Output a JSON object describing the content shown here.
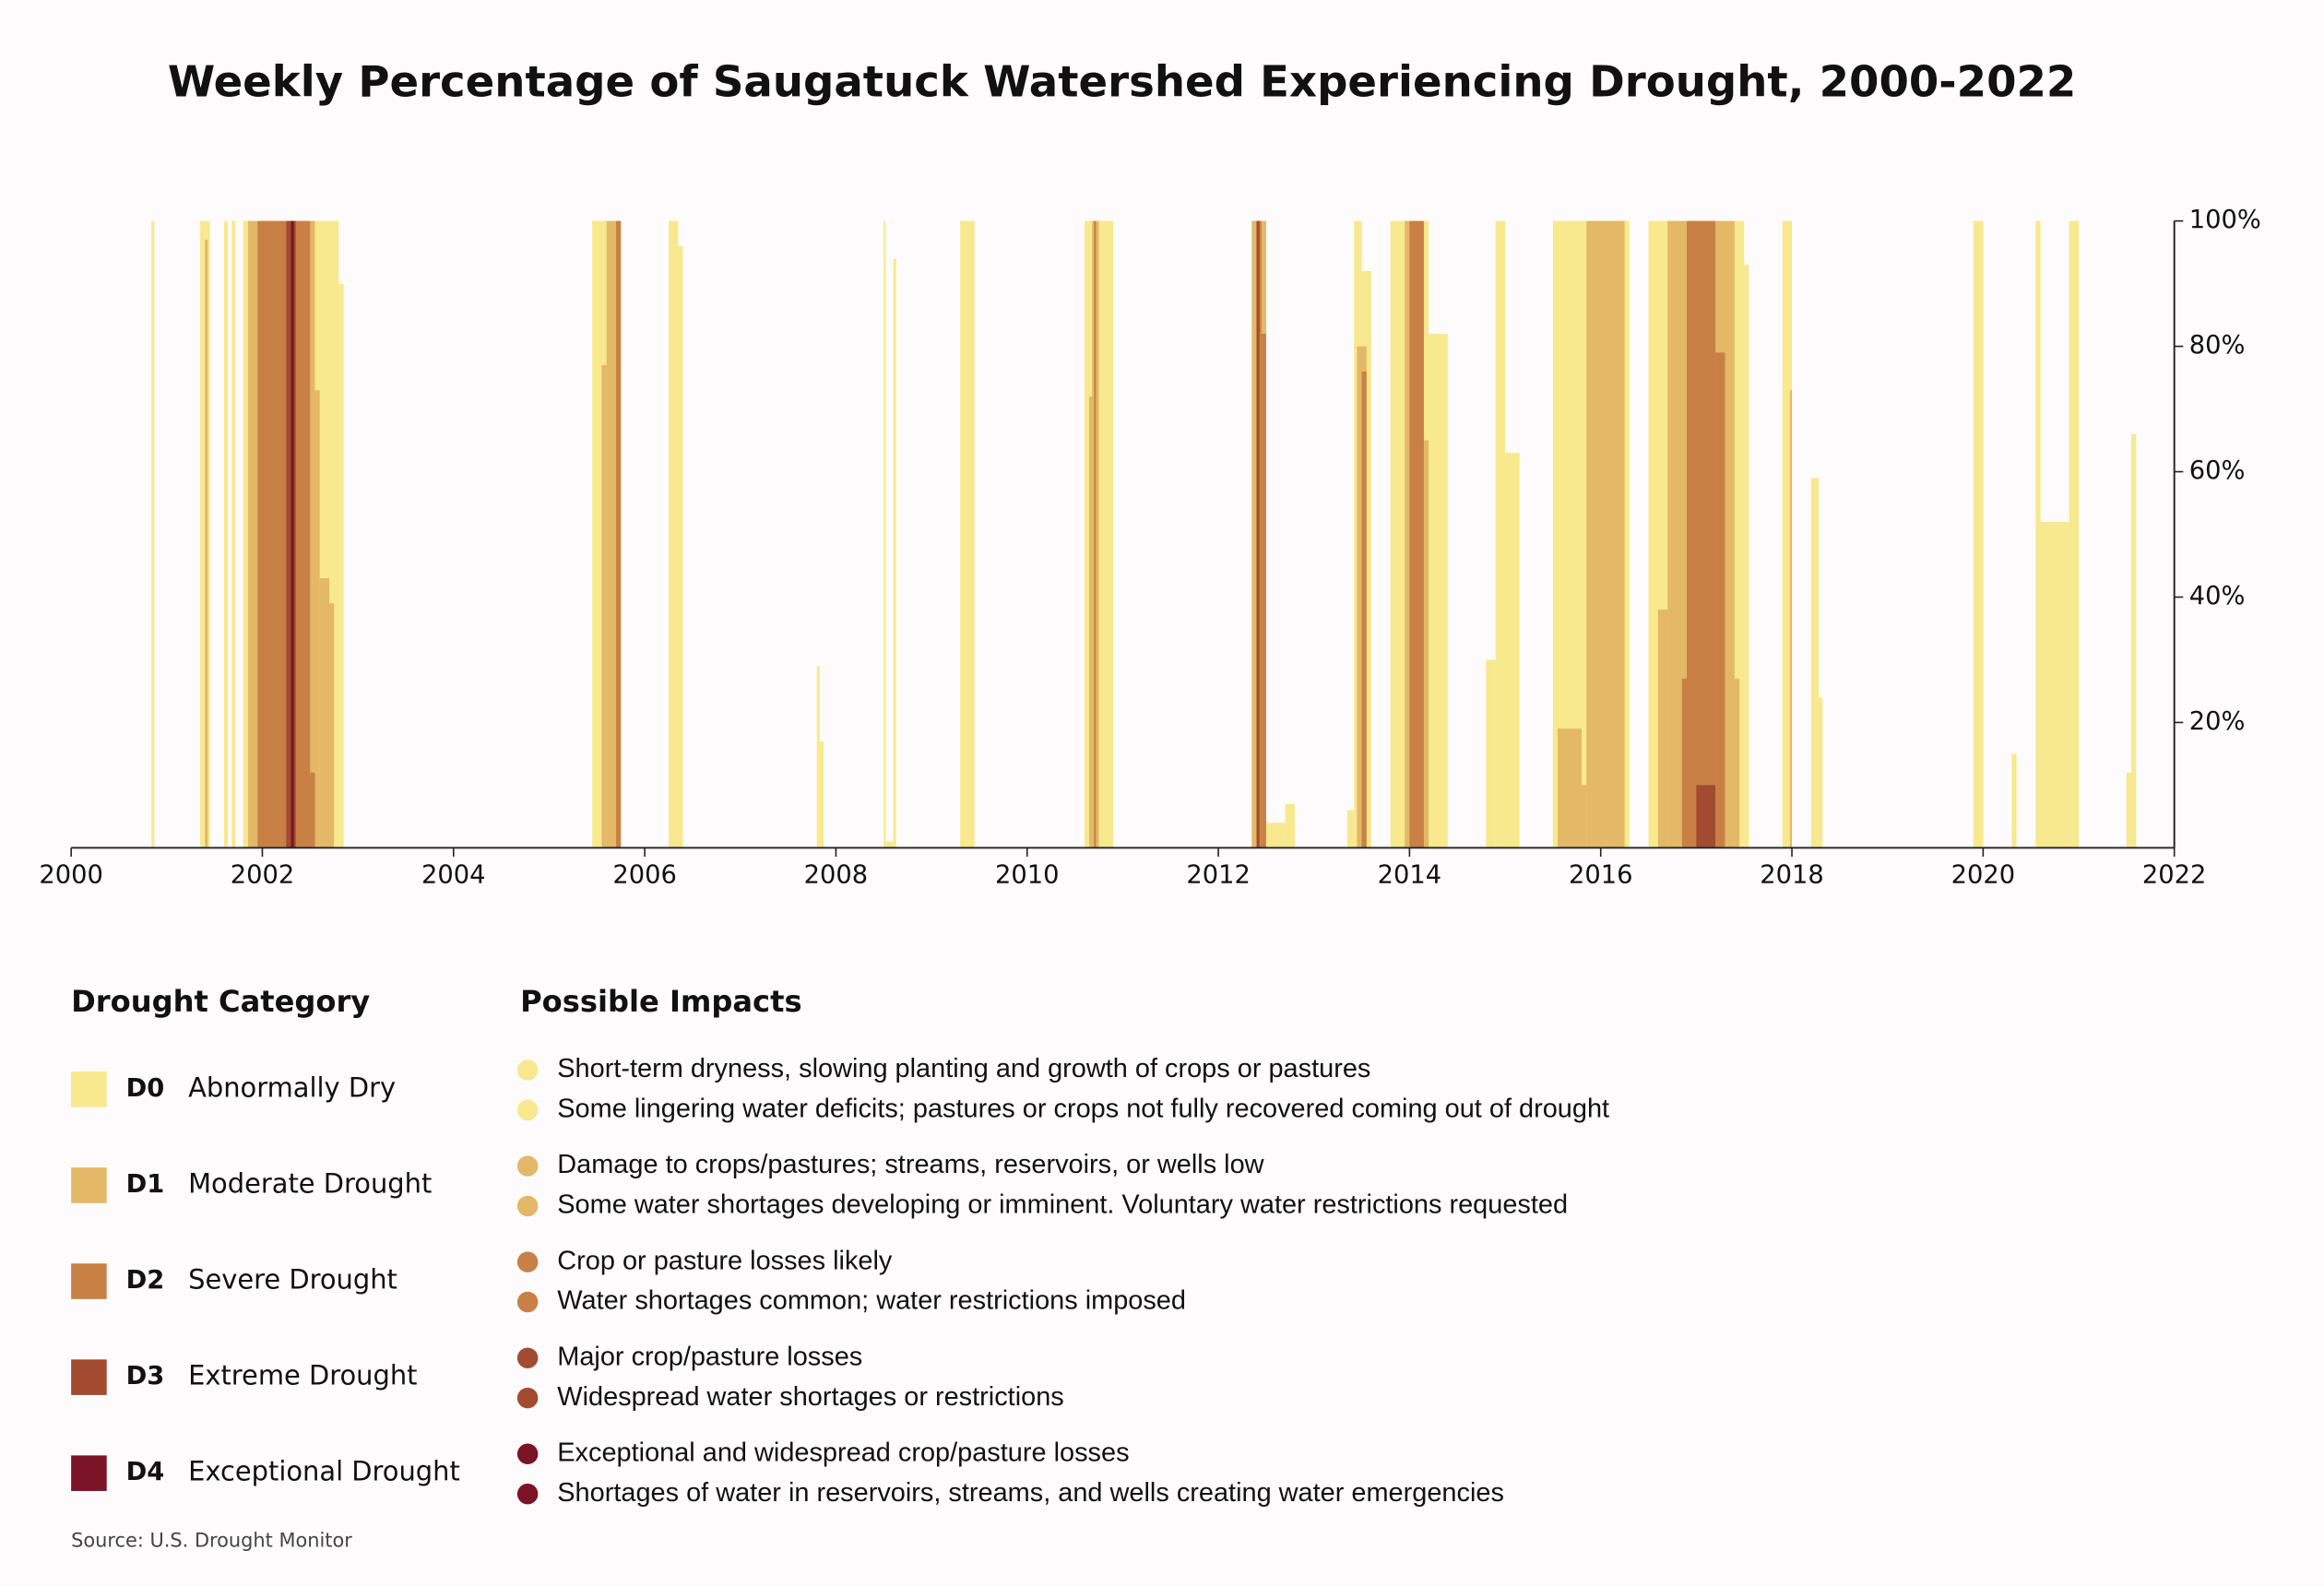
{
  "chart_data": {
    "type": "weekly-bars",
    "title": "Weekly Percentage of Saugatuck Watershed Experiencing Drought, 2000-2022",
    "xlim": [
      2000,
      2022
    ],
    "xticks": [
      2000,
      2002,
      2004,
      2006,
      2008,
      2010,
      2012,
      2014,
      2016,
      2018,
      2020,
      2022
    ],
    "ylim": [
      0,
      100
    ],
    "yticks": [
      {
        "value": 20,
        "label": "20%"
      },
      {
        "value": 40,
        "label": "40%"
      },
      {
        "value": 60,
        "label": "60%"
      },
      {
        "value": 80,
        "label": "80%"
      },
      {
        "value": 100,
        "label": "100%"
      }
    ],
    "legend_title": "Drought Category",
    "impacts_title": "Possible Impacts",
    "source": "Source: U.S. Drought Monitor",
    "series": [
      {
        "name": "D0",
        "label": "Abnormally Dry",
        "color": "#f8e88e",
        "impacts": [
          "Short-term dryness, slowing planting and growth of crops or pastures",
          "Some lingering water deficits; pastures or crops not fully recovered coming out of drought"
        ],
        "x": [
          2000.84,
          2000.87,
          2001.35,
          2001.45,
          2001.6,
          2001.64,
          2001.68,
          2001.72,
          2001.8,
          2002.8,
          2002.85,
          2005.45,
          2005.6,
          2006.25,
          2006.35,
          2006.4,
          2007.8,
          2007.83,
          2007.87,
          2008.5,
          2008.52,
          2008.6,
          2008.63,
          2009.3,
          2009.45,
          2010.6,
          2010.9,
          2012.35,
          2012.5,
          2012.7,
          2012.8,
          2013.35,
          2013.42,
          2013.5,
          2013.6,
          2013.8,
          2014.2,
          2014.4,
          2014.8,
          2014.9,
          2015.0,
          2015.15,
          2015.5,
          2016.3,
          2016.5,
          2017.5,
          2017.55,
          2017.9,
          2018.0,
          2018.2,
          2018.28,
          2018.32,
          2019.9,
          2020.0,
          2020.3,
          2020.35,
          2020.55,
          2020.6,
          2020.9,
          2021.0,
          2021.5,
          2021.55,
          2021.6
        ],
        "values": [
          100,
          0,
          100,
          0,
          100,
          0,
          100,
          0,
          100,
          90,
          0,
          100,
          0,
          100,
          96,
          0,
          29,
          17,
          0,
          100,
          1,
          94,
          0,
          100,
          0,
          100,
          0,
          100,
          4,
          7,
          0,
          6,
          100,
          92,
          0,
          100,
          82,
          0,
          30,
          100,
          63,
          0,
          100,
          0,
          100,
          93,
          0,
          100,
          0,
          59,
          24,
          0,
          100,
          0,
          15,
          0,
          100,
          52,
          100,
          0,
          12,
          66,
          0
        ]
      },
      {
        "name": "D1",
        "label": "Moderate Drought",
        "color": "#e3b866",
        "impacts": [
          "Damage to crops/pastures; streams, reservoirs, or wells low",
          "Some water shortages developing or imminent. Voluntary water restrictions requested"
        ],
        "x": [
          2001.4,
          2001.43,
          2001.85,
          2002.55,
          2002.6,
          2002.7,
          2002.75,
          2005.55,
          2005.6,
          2005.75,
          2010.65,
          2010.68,
          2010.75,
          2012.35,
          2012.5,
          2013.45,
          2013.55,
          2013.95,
          2014.1,
          2014.2,
          2015.55,
          2015.8,
          2015.85,
          2016.25,
          2016.6,
          2016.7,
          2017.4,
          2017.45,
          2017.98,
          2018.0
        ],
        "values": [
          97,
          0,
          100,
          73,
          43,
          39,
          0,
          77,
          100,
          0,
          72,
          100,
          0,
          100,
          0,
          80,
          0,
          100,
          65,
          0,
          19,
          10,
          100,
          0,
          38,
          100,
          27,
          0,
          73,
          0
        ]
      },
      {
        "name": "D2",
        "label": "Severe Drought",
        "color": "#c98045",
        "impacts": [
          "Crop or pasture losses likely",
          "Water shortages common; water restrictions imposed"
        ],
        "x": [
          2001.95,
          2002.5,
          2002.55,
          2002.58,
          2005.7,
          2005.75,
          2010.7,
          2010.72,
          2012.4,
          2012.45,
          2012.5,
          2013.5,
          2013.55,
          2014.0,
          2014.15,
          2016.85,
          2016.9,
          2017.2,
          2017.3
        ],
        "values": [
          100,
          12,
          0,
          0,
          100,
          0,
          100,
          0,
          100,
          82,
          0,
          76,
          0,
          100,
          0,
          27,
          100,
          79,
          0
        ]
      },
      {
        "name": "D3",
        "label": "Extreme Drought",
        "color": "#a24b31",
        "impacts": [
          "Major crop/pasture losses",
          "Widespread water shortages or restrictions"
        ],
        "x": [
          2002.25,
          2002.35,
          2012.4,
          2012.43,
          2017.0,
          2017.2
        ],
        "values": [
          100,
          0,
          100,
          0,
          10,
          0
        ]
      },
      {
        "name": "D4",
        "label": "Exceptional Drought",
        "color": "#7b1426",
        "impacts": [
          "Exceptional and widespread crop/pasture losses",
          "Shortages of water in reservoirs, streams, and wells creating water emergencies"
        ],
        "x": [
          2002.3,
          2002.33
        ],
        "values": [
          100,
          0
        ]
      }
    ]
  }
}
